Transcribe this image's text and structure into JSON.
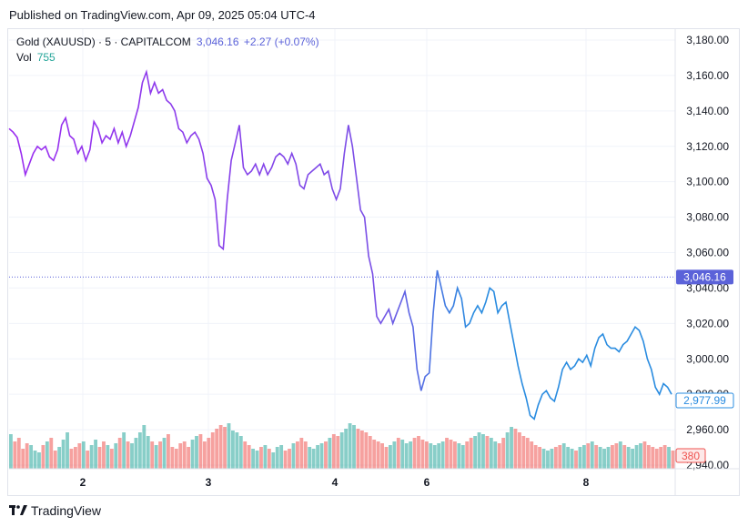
{
  "published": "Published on TradingView.com, Apr 09, 2025 05:04 UTC-4",
  "legend": {
    "symbol": "Gold (XAUUSD) · 5 · CAPITALCOM",
    "price": "3,046.16",
    "change": "+2.27 (+0.07%)",
    "vol_label": "Vol",
    "vol_value": "755"
  },
  "brand": "TradingView",
  "colors": {
    "up": "#26a69a",
    "down": "#ef5350",
    "price_tag": "#5b62d9",
    "line_purple": "#9b2cf0",
    "line_blue": "#2a8ce0"
  },
  "chart_data": {
    "type": "line",
    "title": "Gold (XAUUSD) · 5 · CAPITALCOM",
    "x_ticks": [
      "2",
      "3",
      "4",
      "6",
      "8"
    ],
    "y_ticks": [
      "3,180.00",
      "3,160.00",
      "3,140.00",
      "3,120.00",
      "3,100.00",
      "3,080.00",
      "3,060.00",
      "3,040.00",
      "3,020.00",
      "3,000.00",
      "2,980.00",
      "2,960.00",
      "2,940.00"
    ],
    "ylim": [
      2940,
      3180
    ],
    "price_line": 3046.16,
    "price_tag": "3,046.16",
    "secondary_tag": "2,977.99",
    "volume_tag": "380",
    "series": [
      {
        "name": "price",
        "gradient": [
          "#9b2cf0",
          "#2a8ce0"
        ],
        "values": [
          [
            0,
            3130
          ],
          [
            1,
            3128
          ],
          [
            2,
            3125
          ],
          [
            3,
            3116
          ],
          [
            4,
            3104
          ],
          [
            5,
            3110
          ],
          [
            6,
            3116
          ],
          [
            7,
            3120
          ],
          [
            8,
            3118
          ],
          [
            9,
            3120
          ],
          [
            10,
            3114
          ],
          [
            11,
            3112
          ],
          [
            12,
            3118
          ],
          [
            13,
            3132
          ],
          [
            14,
            3136
          ],
          [
            15,
            3126
          ],
          [
            16,
            3124
          ],
          [
            17,
            3116
          ],
          [
            18,
            3120
          ],
          [
            19,
            3112
          ],
          [
            20,
            3118
          ],
          [
            21,
            3134
          ],
          [
            22,
            3130
          ],
          [
            23,
            3122
          ],
          [
            24,
            3126
          ],
          [
            25,
            3124
          ],
          [
            26,
            3130
          ],
          [
            27,
            3122
          ],
          [
            28,
            3128
          ],
          [
            29,
            3120
          ],
          [
            30,
            3126
          ],
          [
            31,
            3134
          ],
          [
            32,
            3142
          ],
          [
            33,
            3156
          ],
          [
            34,
            3162
          ],
          [
            35,
            3150
          ],
          [
            36,
            3156
          ],
          [
            37,
            3150
          ],
          [
            38,
            3152
          ],
          [
            39,
            3146
          ],
          [
            40,
            3144
          ],
          [
            41,
            3140
          ],
          [
            42,
            3130
          ],
          [
            43,
            3128
          ],
          [
            44,
            3122
          ],
          [
            45,
            3126
          ],
          [
            46,
            3128
          ],
          [
            47,
            3124
          ],
          [
            48,
            3116
          ],
          [
            49,
            3102
          ],
          [
            50,
            3098
          ],
          [
            51,
            3090
          ],
          [
            52,
            3064
          ],
          [
            53,
            3062
          ],
          [
            54,
            3090
          ],
          [
            55,
            3112
          ],
          [
            56,
            3122
          ],
          [
            57,
            3132
          ],
          [
            58,
            3108
          ],
          [
            59,
            3104
          ],
          [
            60,
            3106
          ],
          [
            61,
            3110
          ],
          [
            62,
            3104
          ],
          [
            63,
            3110
          ],
          [
            64,
            3104
          ],
          [
            65,
            3108
          ],
          [
            66,
            3114
          ],
          [
            67,
            3116
          ],
          [
            68,
            3114
          ],
          [
            69,
            3110
          ],
          [
            70,
            3116
          ],
          [
            71,
            3110
          ],
          [
            72,
            3098
          ],
          [
            73,
            3096
          ],
          [
            74,
            3104
          ],
          [
            75,
            3106
          ],
          [
            76,
            3108
          ],
          [
            77,
            3110
          ],
          [
            78,
            3104
          ],
          [
            79,
            3106
          ],
          [
            80,
            3096
          ],
          [
            81,
            3090
          ],
          [
            82,
            3096
          ],
          [
            83,
            3116
          ],
          [
            84,
            3132
          ],
          [
            85,
            3120
          ],
          [
            86,
            3102
          ],
          [
            87,
            3084
          ],
          [
            88,
            3080
          ],
          [
            89,
            3058
          ],
          [
            90,
            3048
          ],
          [
            91,
            3024
          ],
          [
            92,
            3020
          ],
          [
            93,
            3024
          ],
          [
            94,
            3028
          ],
          [
            95,
            3020
          ],
          [
            96,
            3026
          ],
          [
            97,
            3032
          ],
          [
            98,
            3038
          ],
          [
            99,
            3026
          ],
          [
            100,
            3018
          ],
          [
            101,
            2994
          ],
          [
            102,
            2982
          ],
          [
            103,
            2990
          ],
          [
            104,
            2992
          ],
          [
            105,
            3026
          ],
          [
            106,
            3050
          ],
          [
            107,
            3040
          ],
          [
            108,
            3030
          ],
          [
            109,
            3026
          ],
          [
            110,
            3030
          ],
          [
            111,
            3040
          ],
          [
            112,
            3034
          ],
          [
            113,
            3018
          ],
          [
            114,
            3020
          ],
          [
            115,
            3026
          ],
          [
            116,
            3030
          ],
          [
            117,
            3026
          ],
          [
            118,
            3032
          ],
          [
            119,
            3040
          ],
          [
            120,
            3038
          ],
          [
            121,
            3026
          ],
          [
            122,
            3030
          ],
          [
            123,
            3032
          ],
          [
            124,
            3020
          ],
          [
            125,
            3008
          ],
          [
            126,
            2996
          ],
          [
            127,
            2986
          ],
          [
            128,
            2978
          ],
          [
            129,
            2968
          ],
          [
            130,
            2966
          ],
          [
            131,
            2974
          ],
          [
            132,
            2980
          ],
          [
            133,
            2982
          ],
          [
            134,
            2978
          ],
          [
            135,
            2976
          ],
          [
            136,
            2984
          ],
          [
            137,
            2994
          ],
          [
            138,
            2998
          ],
          [
            139,
            2994
          ],
          [
            140,
            2996
          ],
          [
            141,
            3000
          ],
          [
            142,
            2998
          ],
          [
            143,
            3002
          ],
          [
            144,
            2996
          ],
          [
            145,
            3006
          ],
          [
            146,
            3012
          ],
          [
            147,
            3014
          ],
          [
            148,
            3008
          ],
          [
            149,
            3006
          ],
          [
            150,
            3006
          ],
          [
            151,
            3004
          ],
          [
            152,
            3008
          ],
          [
            153,
            3010
          ],
          [
            154,
            3014
          ],
          [
            155,
            3018
          ],
          [
            156,
            3016
          ],
          [
            157,
            3010
          ],
          [
            158,
            3000
          ],
          [
            159,
            2994
          ],
          [
            160,
            2984
          ],
          [
            161,
            2980
          ],
          [
            162,
            2986
          ],
          [
            163,
            2984
          ],
          [
            164,
            2980
          ]
        ]
      }
    ],
    "volume": {
      "values": [
        38,
        30,
        34,
        22,
        28,
        26,
        20,
        18,
        26,
        30,
        34,
        20,
        24,
        32,
        40,
        22,
        24,
        28,
        30,
        20,
        26,
        32,
        24,
        30,
        26,
        22,
        28,
        34,
        40,
        30,
        28,
        34,
        40,
        48,
        36,
        30,
        26,
        30,
        34,
        38,
        24,
        22,
        28,
        30,
        24,
        32,
        36,
        38,
        30,
        34,
        40,
        44,
        48,
        46,
        50,
        42,
        40,
        36,
        30,
        26,
        22,
        20,
        24,
        26,
        22,
        18,
        24,
        26,
        20,
        22,
        28,
        30,
        34,
        30,
        24,
        22,
        26,
        28,
        30,
        34,
        38,
        36,
        40,
        44,
        50,
        48,
        44,
        42,
        40,
        36,
        32,
        30,
        28,
        24,
        26,
        30,
        34,
        32,
        28,
        30,
        34,
        36,
        32,
        30,
        28,
        26,
        28,
        30,
        34,
        32,
        30,
        28,
        26,
        30,
        34,
        36,
        40,
        38,
        36,
        34,
        30,
        28,
        34,
        40,
        46,
        44,
        40,
        36,
        34,
        30,
        26,
        24,
        22,
        20,
        22,
        24,
        26,
        28,
        24,
        22,
        20,
        24,
        26,
        28,
        30,
        26,
        24,
        22,
        24,
        26,
        28,
        30,
        26,
        24,
        22,
        26,
        28,
        30,
        26,
        24,
        22,
        24,
        26,
        24,
        20
      ],
      "max_scale": 100
    }
  }
}
